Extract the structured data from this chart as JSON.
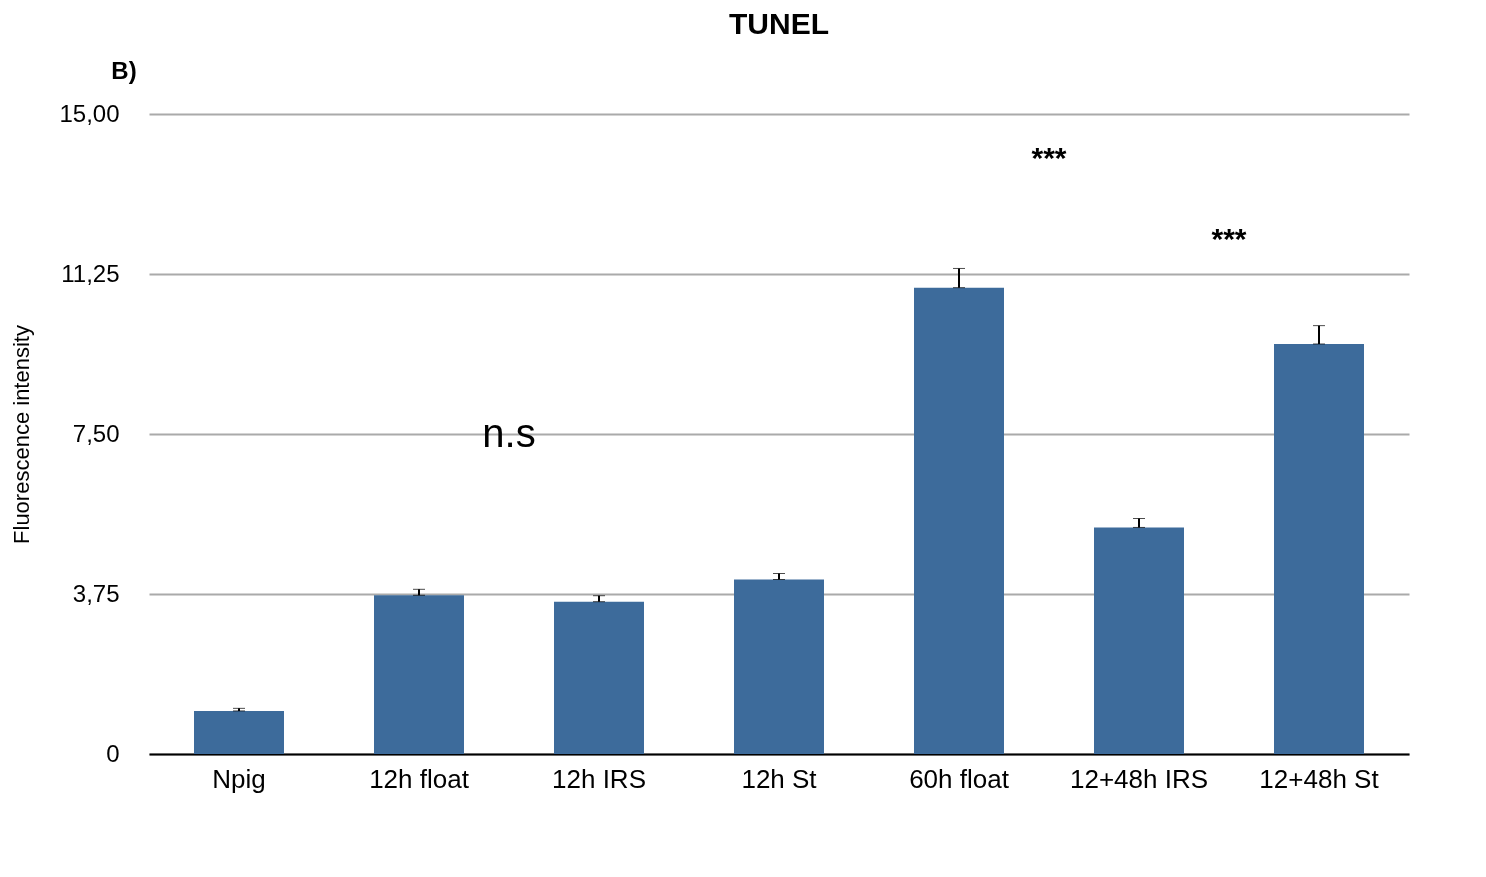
{
  "chart_data": {
    "type": "bar",
    "title": "TUNEL",
    "ylabel": "Fluorescence intensity",
    "categories": [
      "Npig",
      "12h float",
      "12h IRS",
      "12h St",
      "60h float",
      "12+48h IRS",
      "12+48h St"
    ],
    "values": [
      1.01,
      3.72,
      3.57,
      4.09,
      10.93,
      5.31,
      9.61
    ],
    "errors": [
      0.06,
      0.14,
      0.14,
      0.14,
      0.45,
      0.21,
      0.43
    ],
    "color": "#3d6b9b",
    "ylim": [
      0,
      15
    ],
    "yticks": [
      {
        "value": 0,
        "label": "0"
      },
      {
        "value": 3.75,
        "label": "3,75"
      },
      {
        "value": 7.5,
        "label": "7,50"
      },
      {
        "value": 11.25,
        "label": "11,25"
      },
      {
        "value": 15,
        "label": "15,00"
      }
    ],
    "grid": "y",
    "annotations": [
      "B)",
      "n.s",
      "***",
      "***"
    ]
  }
}
